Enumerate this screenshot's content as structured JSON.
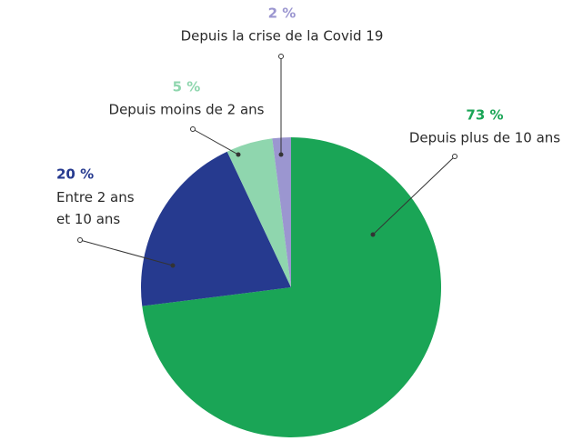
{
  "chart_data": {
    "type": "pie",
    "categories": [
      "Depuis plus de 10 ans",
      "Entre 2 ans\net 10 ans",
      "Depuis moins de 2 ans",
      "Depuis la crise de la Covid 19"
    ],
    "values": [
      73,
      20,
      5,
      2
    ],
    "value_labels": [
      "73 %",
      "20 %",
      "5 %",
      "2 %"
    ],
    "colors": [
      "#1aa556",
      "#263a8f",
      "#8fd6ae",
      "#9b96d0"
    ]
  }
}
